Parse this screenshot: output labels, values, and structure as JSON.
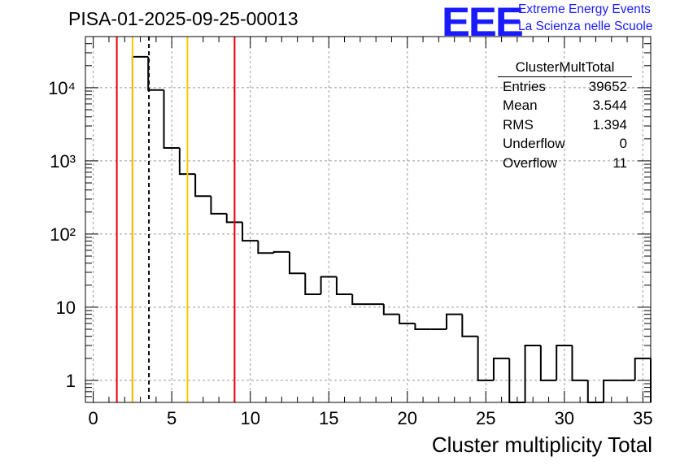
{
  "run_title": "PISA-01-2025-09-25-00013",
  "logo": {
    "mark": "EEE",
    "line1": "Extreme Energy Events",
    "line2": "La Scienza nelle Scuole"
  },
  "stats_box": {
    "title": "ClusterMultTotal",
    "rows": [
      {
        "label": "Entries",
        "value": "39652"
      },
      {
        "label": "Mean",
        "value": "3.544"
      },
      {
        "label": "RMS",
        "value": "1.394"
      },
      {
        "label": "Underflow",
        "value": "0"
      },
      {
        "label": "Overflow",
        "value": "11"
      }
    ]
  },
  "colors": {
    "histogram": "#000000",
    "red_line": "#e8000b",
    "gold_line": "#ffc800",
    "grid": "#9a9a9a",
    "logo": "#1a1aff"
  },
  "chart_data": {
    "type": "histogram",
    "title": "PISA-01-2025-09-25-00013",
    "xlabel": "Cluster multiplicity Total",
    "ylabel": "",
    "yscale": "log",
    "xlim": [
      -0.5,
      35.5
    ],
    "ylim": [
      0.5,
      50000
    ],
    "grid": true,
    "xticks": [
      0,
      5,
      10,
      15,
      20,
      25,
      30,
      35
    ],
    "xtick_labels": [
      "0",
      "5",
      "10",
      "15",
      "20",
      "25",
      "30",
      "35"
    ],
    "yticks": [
      1,
      10,
      100,
      1000,
      10000
    ],
    "ytick_labels": [
      "1",
      "10",
      "10²",
      "10³",
      "10⁴"
    ],
    "bin_width": 1,
    "bins": [
      {
        "x0": 2.5,
        "x1": 3.5,
        "count": 26500
      },
      {
        "x0": 3.5,
        "x1": 4.5,
        "count": 9300
      },
      {
        "x0": 4.5,
        "x1": 5.5,
        "count": 1500
      },
      {
        "x0": 5.5,
        "x1": 6.5,
        "count": 660
      },
      {
        "x0": 6.5,
        "x1": 7.5,
        "count": 330
      },
      {
        "x0": 7.5,
        "x1": 8.5,
        "count": 190
      },
      {
        "x0": 8.5,
        "x1": 9.5,
        "count": 145
      },
      {
        "x0": 9.5,
        "x1": 10.5,
        "count": 81
      },
      {
        "x0": 10.5,
        "x1": 11.5,
        "count": 55
      },
      {
        "x0": 11.5,
        "x1": 12.5,
        "count": 57
      },
      {
        "x0": 12.5,
        "x1": 13.5,
        "count": 29
      },
      {
        "x0": 13.5,
        "x1": 14.5,
        "count": 15
      },
      {
        "x0": 14.5,
        "x1": 15.5,
        "count": 26
      },
      {
        "x0": 15.5,
        "x1": 16.5,
        "count": 15
      },
      {
        "x0": 16.5,
        "x1": 17.5,
        "count": 11
      },
      {
        "x0": 17.5,
        "x1": 18.5,
        "count": 11
      },
      {
        "x0": 18.5,
        "x1": 19.5,
        "count": 8
      },
      {
        "x0": 19.5,
        "x1": 20.5,
        "count": 6
      },
      {
        "x0": 20.5,
        "x1": 21.5,
        "count": 5
      },
      {
        "x0": 21.5,
        "x1": 22.5,
        "count": 5
      },
      {
        "x0": 22.5,
        "x1": 23.5,
        "count": 8
      },
      {
        "x0": 23.5,
        "x1": 24.5,
        "count": 4
      },
      {
        "x0": 24.5,
        "x1": 25.5,
        "count": 1
      },
      {
        "x0": 25.5,
        "x1": 26.5,
        "count": 2
      },
      {
        "x0": 26.5,
        "x1": 27.5,
        "count": 0
      },
      {
        "x0": 27.5,
        "x1": 28.5,
        "count": 3
      },
      {
        "x0": 28.5,
        "x1": 29.5,
        "count": 1
      },
      {
        "x0": 29.5,
        "x1": 30.5,
        "count": 3
      },
      {
        "x0": 30.5,
        "x1": 31.5,
        "count": 1
      },
      {
        "x0": 31.5,
        "x1": 32.5,
        "count": 0
      },
      {
        "x0": 32.5,
        "x1": 33.5,
        "count": 1
      },
      {
        "x0": 33.5,
        "x1": 34.5,
        "count": 1
      },
      {
        "x0": 34.5,
        "x1": 35.5,
        "count": 2
      }
    ],
    "vertical_lines": [
      {
        "x": 1.5,
        "color": "red",
        "style": "solid"
      },
      {
        "x": 2.5,
        "color": "gold",
        "style": "solid"
      },
      {
        "x": 3.544,
        "color": "black",
        "style": "dashed",
        "label": "mean"
      },
      {
        "x": 6.0,
        "color": "gold",
        "style": "solid"
      },
      {
        "x": 9.0,
        "color": "red",
        "style": "solid"
      }
    ]
  }
}
